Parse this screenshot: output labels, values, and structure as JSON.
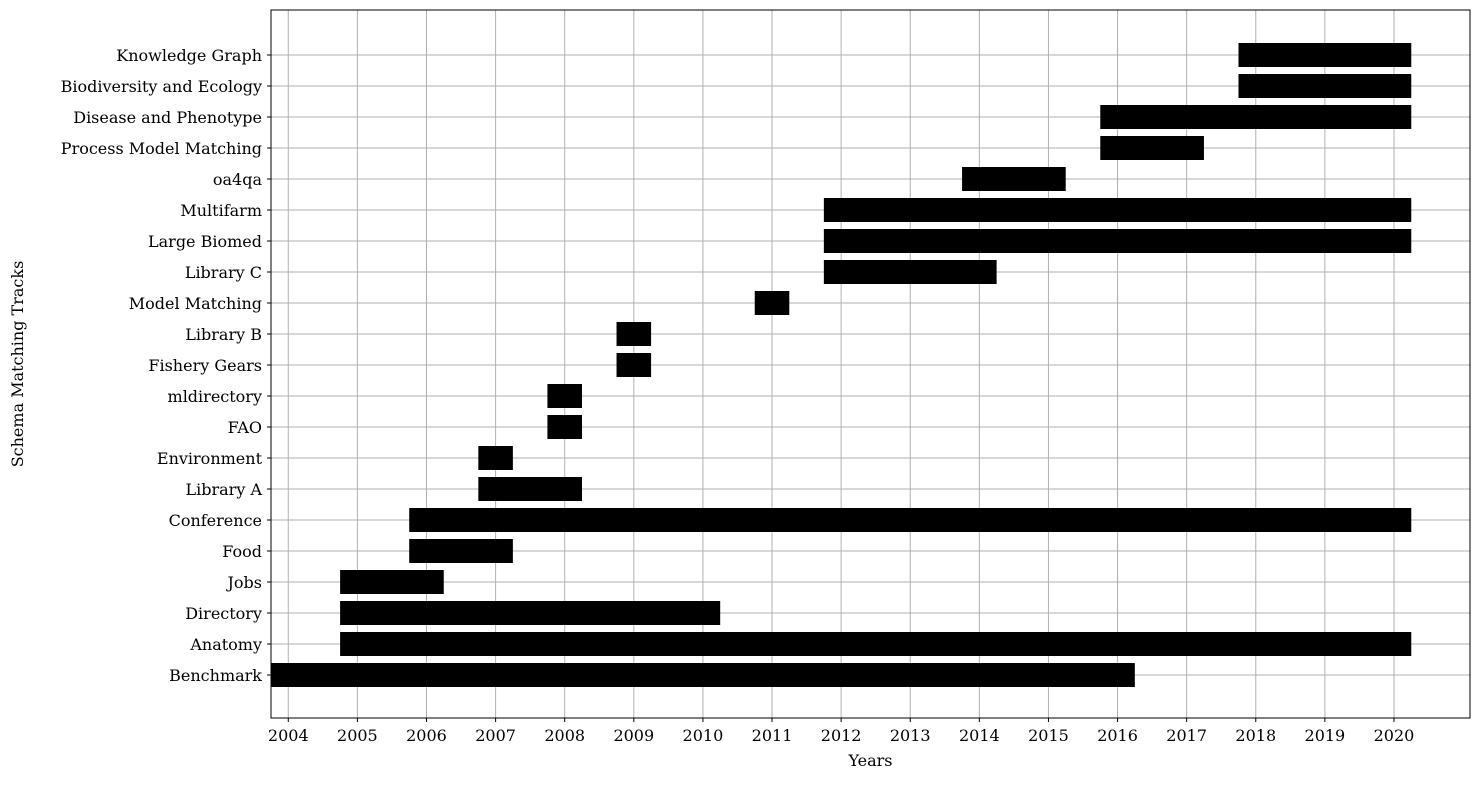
{
  "chart_data": {
    "type": "bar",
    "orientation": "horizontal-timeline",
    "xlabel": "Years",
    "ylabel": "Schema Matching Tracks",
    "x_ticks": [
      2004,
      2005,
      2006,
      2007,
      2008,
      2009,
      2010,
      2011,
      2012,
      2013,
      2014,
      2015,
      2016,
      2017,
      2018,
      2019,
      2020
    ],
    "xlim": [
      2003.75,
      2021.1
    ],
    "grid": true,
    "bar_color": "#000000",
    "tracks": [
      {
        "name": "Benchmark",
        "start": 2003.75,
        "end": 2016.25
      },
      {
        "name": "Anatomy",
        "start": 2004.75,
        "end": 2020.25
      },
      {
        "name": "Directory",
        "start": 2004.75,
        "end": 2010.25
      },
      {
        "name": "Jobs",
        "start": 2004.75,
        "end": 2006.25
      },
      {
        "name": "Food",
        "start": 2005.75,
        "end": 2007.25
      },
      {
        "name": "Conference",
        "start": 2005.75,
        "end": 2020.25
      },
      {
        "name": "Library A",
        "start": 2006.75,
        "end": 2008.25
      },
      {
        "name": "Environment",
        "start": 2006.75,
        "end": 2007.25
      },
      {
        "name": "FAO",
        "start": 2007.75,
        "end": 2008.25
      },
      {
        "name": "mldirectory",
        "start": 2007.75,
        "end": 2008.25
      },
      {
        "name": "Fishery Gears",
        "start": 2008.75,
        "end": 2009.25
      },
      {
        "name": "Library B",
        "start": 2008.75,
        "end": 2009.25
      },
      {
        "name": "Model Matching",
        "start": 2010.75,
        "end": 2011.25
      },
      {
        "name": "Library C",
        "start": 2011.75,
        "end": 2014.25
      },
      {
        "name": "Large Biomed",
        "start": 2011.75,
        "end": 2020.25
      },
      {
        "name": "Multifarm",
        "start": 2011.75,
        "end": 2020.25
      },
      {
        "name": "oa4qa",
        "start": 2013.75,
        "end": 2015.25
      },
      {
        "name": "Process Model Matching",
        "start": 2015.75,
        "end": 2017.25
      },
      {
        "name": "Disease and Phenotype",
        "start": 2015.75,
        "end": 2020.25
      },
      {
        "name": "Biodiversity and Ecology",
        "start": 2017.75,
        "end": 2020.25
      },
      {
        "name": "Knowledge Graph",
        "start": 2017.75,
        "end": 2020.25
      }
    ]
  }
}
